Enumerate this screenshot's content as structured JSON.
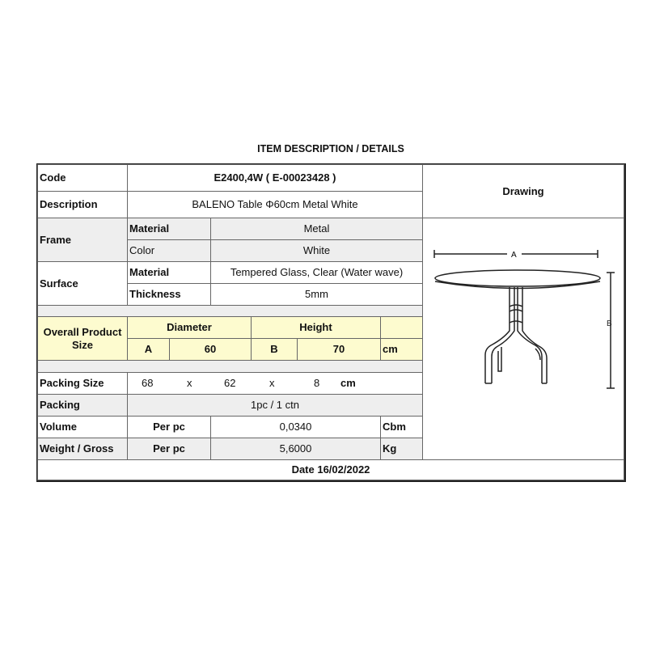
{
  "title": "ITEM DESCRIPTION / DETAILS",
  "code": {
    "label": "Code",
    "value": "E2400,4W  ( E-00023428 )"
  },
  "description": {
    "label": "Description",
    "value": "BALENO Table Φ60cm Metal White"
  },
  "frame": {
    "label": "Frame",
    "material_label": "Material",
    "material": "Metal",
    "color_label": "Color",
    "color": "White"
  },
  "surface": {
    "label": "Surface",
    "material_label": "Material",
    "material": "Tempered Glass, Clear (Water wave)",
    "thickness_label": "Thickness",
    "thickness": "5mm"
  },
  "overall_size": {
    "label": "Overall Product Size",
    "diameter_label": "Diameter",
    "height_label": "Height",
    "a_label": "A",
    "a_value": "60",
    "b_label": "B",
    "b_value": "70",
    "unit": "cm"
  },
  "packing_size": {
    "label": "Packing Size",
    "l": "68",
    "x1": "x",
    "w": "62",
    "x2": "x",
    "h": "8",
    "unit": "cm"
  },
  "packing": {
    "label": "Packing",
    "value": "1pc / 1 ctn"
  },
  "volume": {
    "label": "Volume",
    "per": "Per pc",
    "value": "0,0340",
    "unit": "Cbm"
  },
  "weight": {
    "label": "Weight / Gross",
    "per": "Per pc",
    "value": "5,6000",
    "unit": "Kg"
  },
  "date": "Date 16/02/2022",
  "drawing": {
    "label": "Drawing",
    "dim_a": "A",
    "dim_b": "B"
  },
  "colors": {
    "highlight": "#fdfbcf",
    "shade": "#eeeeee"
  }
}
